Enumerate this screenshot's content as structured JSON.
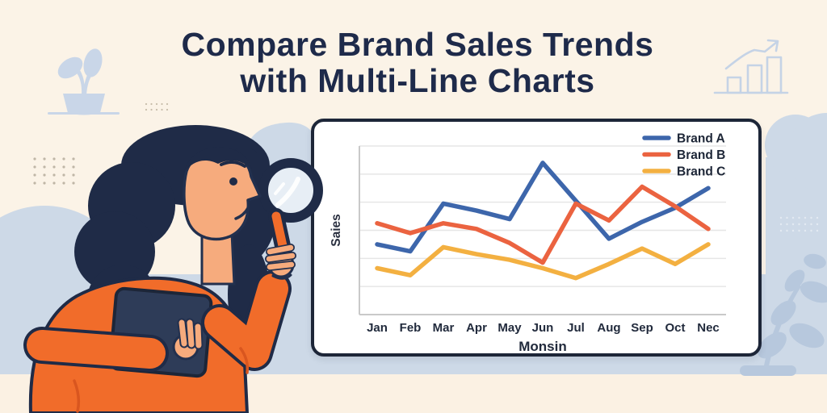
{
  "header": {
    "title_line1": "Compare Brand Sales Trends",
    "title_line2": "with Multi-Line Charts"
  },
  "chart_data": {
    "type": "line",
    "title": "",
    "xlabel": "Monsin",
    "ylabel": "Saies",
    "categories": [
      "Jan",
      "Feb",
      "Mar",
      "Apr",
      "May",
      "Jun",
      "Jul",
      "Aug",
      "Sep",
      "Oct",
      "Nec"
    ],
    "series": [
      {
        "name": "Brand A",
        "color": "#3d66ab",
        "values": [
          2.5,
          2.25,
          3.95,
          3.7,
          3.4,
          5.4,
          4.05,
          2.7,
          3.3,
          3.8,
          4.5
        ]
      },
      {
        "name": "Brand B",
        "color": "#eb6340",
        "values": [
          3.25,
          2.9,
          3.25,
          3.05,
          2.55,
          1.85,
          3.95,
          3.35,
          4.55,
          3.85,
          3.05
        ]
      },
      {
        "name": "Brand C",
        "color": "#f3b041",
        "values": [
          1.65,
          1.4,
          2.4,
          2.15,
          1.95,
          1.65,
          1.3,
          1.8,
          2.35,
          1.8,
          2.5
        ]
      }
    ],
    "ylim": [
      0,
      6
    ],
    "grid": "horizontal",
    "legend_position": "top-right"
  },
  "illustration": {
    "description": "Woman with dark wavy hair in an orange sweater examining the chart through a magnifying glass while holding a navy tablet"
  },
  "icons": {
    "decor": [
      "potted-plant-icon",
      "growth-trend-icon",
      "dots-pattern",
      "leaf-branch-icon",
      "magnifying-glass-icon"
    ]
  },
  "colors": {
    "background_cream": "#fbf3e7",
    "bottom_strip_cream": "#fbf1e3",
    "scenery_blue": "#cdd9e7",
    "leaf_blue": "#b7c8dd",
    "icon_outline_blue": "#c5d3e6",
    "navy": "#1f2b47",
    "panel_border": "#1d2638",
    "panel_background": "#ffffff",
    "gridline": "#e6e6e6",
    "axis_line": "#c9c9c9",
    "tick_text": "#212a3c",
    "sweater_orange": "#f16c2a",
    "sweater_fold_orange": "#d9561f",
    "skin": "#f6ab7d",
    "brand_a": "#3d66ab",
    "brand_b": "#eb6340",
    "brand_c": "#f3b041"
  }
}
